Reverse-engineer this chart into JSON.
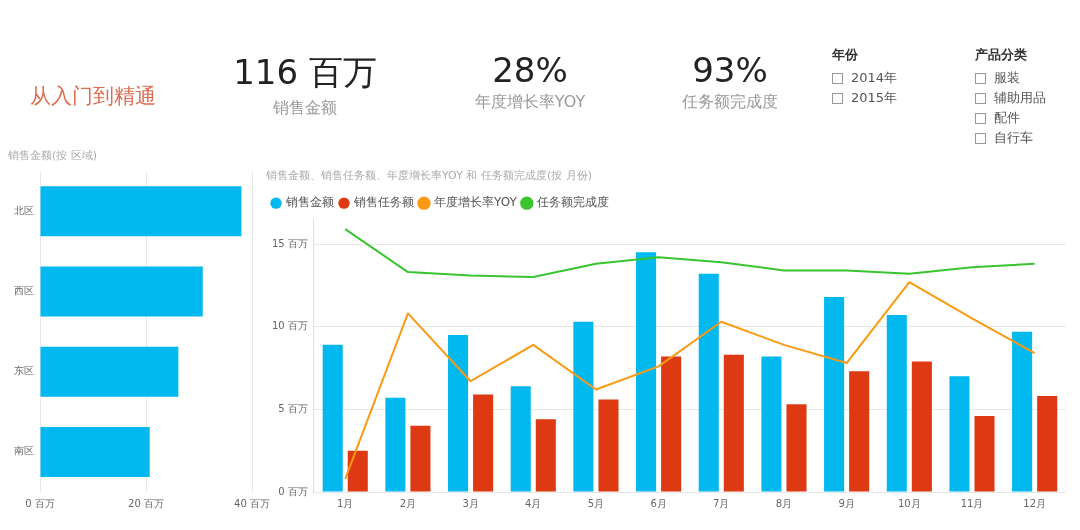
{
  "chart_data": [
    {
      "type": "other",
      "title": "从入门到精通",
      "annotations": [
        "116 百万",
        "销售金额",
        "28%",
        "年度增长率YOY",
        "93%",
        "任务额完成度"
      ]
    },
    {
      "type": "other",
      "title": "年份",
      "annotations": [
        "2014年",
        "2015年"
      ]
    },
    {
      "type": "other",
      "title": "产品分类",
      "annotations": [
        "服装",
        "辅助用品",
        "配件",
        "自行车"
      ]
    },
    {
      "type": "bar",
      "orientation": "horizontal",
      "title": "销售金额(按 区域)",
      "categories": [
        "北区",
        "西区",
        "东区",
        "南区"
      ],
      "values": [
        38.0,
        30.7,
        26.1,
        20.7
      ],
      "color": "#01b8ef",
      "xlim": [
        0,
        40
      ],
      "xticks": [
        {
          "value": 0,
          "label": "0 百万"
        },
        {
          "value": 20,
          "label": "20 百万"
        },
        {
          "value": 40,
          "label": "40 百万"
        }
      ],
      "grid": "x",
      "legend": false
    },
    {
      "type": "bar",
      "title": "销售金额、销售任务额、年度增长率YOY 和 任务额完成度(按 月份)",
      "categories": [
        "1月",
        "2月",
        "3月",
        "4月",
        "5月",
        "6月",
        "7月",
        "8月",
        "9月",
        "10月",
        "11月",
        "12月"
      ],
      "series": [
        {
          "name": "销售金额",
          "color": "#01b8ef",
          "values": [
            8.9,
            5.7,
            9.5,
            6.4,
            10.3,
            14.5,
            13.2,
            8.2,
            11.8,
            10.7,
            7.0,
            9.7
          ]
        },
        {
          "name": "销售任务额",
          "color": "#dd3913",
          "values": [
            2.5,
            4.0,
            5.9,
            4.4,
            5.6,
            8.2,
            8.3,
            5.3,
            7.3,
            7.9,
            4.6,
            5.8
          ]
        },
        {
          "name": "年度增长率YOY",
          "type": "line",
          "color": "#f99a15",
          "values": [
            0.8,
            10.8,
            6.7,
            8.9,
            6.2,
            7.6,
            10.3,
            8.9,
            7.8,
            12.7,
            10.5,
            8.4
          ]
        },
        {
          "name": "任务额完成度",
          "type": "line",
          "color": "#38c530",
          "values": [
            15.9,
            13.3,
            13.1,
            13.0,
            13.8,
            14.2,
            13.9,
            13.4,
            13.4,
            13.2,
            13.6,
            13.8
          ]
        }
      ],
      "ylim": [
        0,
        16.5
      ],
      "yticks": [
        {
          "value": 0,
          "label": "0 百万"
        },
        {
          "value": 5,
          "label": "5 百万"
        },
        {
          "value": 10,
          "label": "10 百万"
        },
        {
          "value": 15,
          "label": "15 百万"
        }
      ],
      "grid": "y",
      "legend": "top left",
      "marker": "none"
    }
  ]
}
